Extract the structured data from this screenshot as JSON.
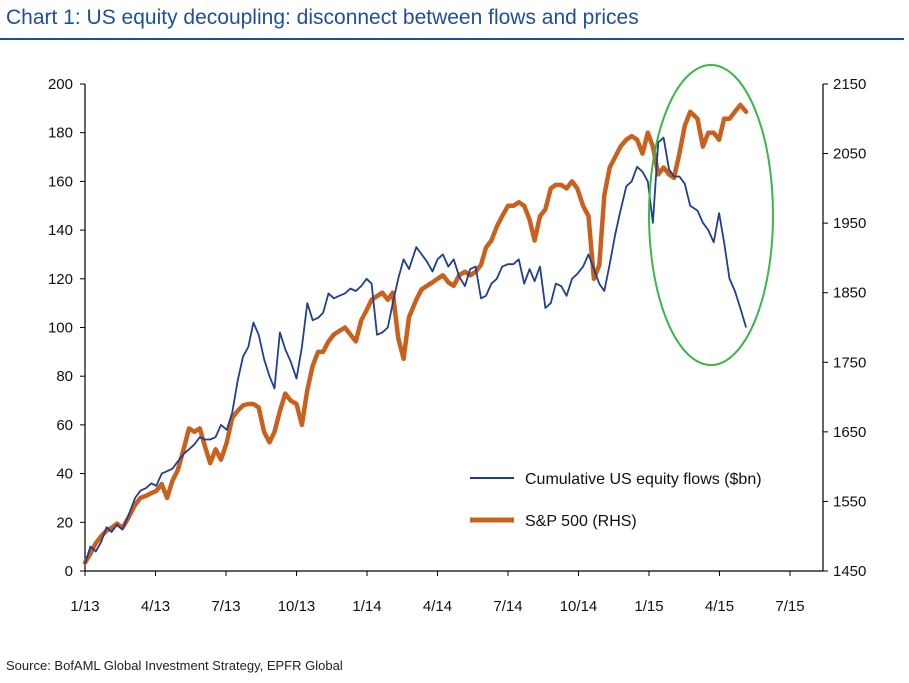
{
  "title": "Chart 1: US equity decoupling: disconnect between flows and prices",
  "source": "Source: BofAML Global Investment Strategy, EPFR Global",
  "colors": {
    "title": "#1f4e9c",
    "flows": "#1f3f8f",
    "sp500": "#c9601e",
    "circle": "#3cb54a"
  },
  "chart_data": {
    "type": "line",
    "title": "Chart 1: US equity decoupling: disconnect between flows and prices",
    "x_ticks": [
      "1/13",
      "4/13",
      "7/13",
      "10/13",
      "1/14",
      "4/14",
      "7/14",
      "10/14",
      "1/15",
      "4/15",
      "7/15"
    ],
    "x_range": [
      "2013-01",
      "2015-08"
    ],
    "y_left": {
      "ticks": [
        "0",
        "20",
        "40",
        "60",
        "80",
        "100",
        "120",
        "140",
        "160",
        "180",
        "200"
      ],
      "range": [
        0,
        200
      ]
    },
    "y_right": {
      "ticks": [
        "1450",
        "1550",
        "1650",
        "1750",
        "1850",
        "1950",
        "2050",
        "2150"
      ],
      "range": [
        1450,
        2150
      ]
    },
    "legend": {
      "placement": "bottom-right",
      "entries": [
        "Cumulative US equity flows ($bn)",
        "S&P 500 (RHS)"
      ]
    },
    "annotation": "green ellipse highlighting early 2015 divergence",
    "grid": false,
    "series": [
      {
        "name": "Cumulative US equity flows ($bn)",
        "axis": "left",
        "x": [
          "2013-01-01",
          "2013-01-08",
          "2013-01-15",
          "2013-01-22",
          "2013-01-29",
          "2013-02-05",
          "2013-02-12",
          "2013-02-19",
          "2013-02-26",
          "2013-03-05",
          "2013-03-12",
          "2013-03-19",
          "2013-03-26",
          "2013-04-02",
          "2013-04-09",
          "2013-04-16",
          "2013-04-23",
          "2013-04-30",
          "2013-05-07",
          "2013-05-14",
          "2013-05-21",
          "2013-05-28",
          "2013-06-04",
          "2013-06-11",
          "2013-06-18",
          "2013-06-25",
          "2013-07-02",
          "2013-07-09",
          "2013-07-16",
          "2013-07-23",
          "2013-07-30",
          "2013-08-06",
          "2013-08-13",
          "2013-08-20",
          "2013-08-27",
          "2013-09-03",
          "2013-09-10",
          "2013-09-17",
          "2013-09-24",
          "2013-10-01",
          "2013-10-08",
          "2013-10-15",
          "2013-10-22",
          "2013-10-29",
          "2013-11-05",
          "2013-11-12",
          "2013-11-19",
          "2013-11-26",
          "2013-12-03",
          "2013-12-10",
          "2013-12-17",
          "2013-12-24",
          "2013-12-31",
          "2014-01-07",
          "2014-01-14",
          "2014-01-21",
          "2014-01-28",
          "2014-02-04",
          "2014-02-11",
          "2014-02-18",
          "2014-02-25",
          "2014-03-04",
          "2014-03-11",
          "2014-03-18",
          "2014-03-25",
          "2014-04-01",
          "2014-04-08",
          "2014-04-15",
          "2014-04-22",
          "2014-04-29",
          "2014-05-06",
          "2014-05-13",
          "2014-05-20",
          "2014-05-27",
          "2014-06-03",
          "2014-06-10",
          "2014-06-17",
          "2014-06-24",
          "2014-07-01",
          "2014-07-08",
          "2014-07-15",
          "2014-07-22",
          "2014-07-29",
          "2014-08-05",
          "2014-08-12",
          "2014-08-19",
          "2014-08-26",
          "2014-09-02",
          "2014-09-09",
          "2014-09-16",
          "2014-09-23",
          "2014-09-30",
          "2014-10-07",
          "2014-10-14",
          "2014-10-21",
          "2014-10-28",
          "2014-11-04",
          "2014-11-11",
          "2014-11-18",
          "2014-11-25",
          "2014-12-02",
          "2014-12-09",
          "2014-12-16",
          "2014-12-23",
          "2014-12-30",
          "2015-01-06",
          "2015-01-13",
          "2015-01-20",
          "2015-01-27",
          "2015-02-03",
          "2015-02-10",
          "2015-02-17",
          "2015-02-24",
          "2015-03-03",
          "2015-03-10",
          "2015-03-17",
          "2015-03-24",
          "2015-03-31",
          "2015-04-07",
          "2015-04-14",
          "2015-04-21",
          "2015-04-28",
          "2015-05-05"
        ],
        "values": [
          3,
          10,
          8,
          12,
          18,
          16,
          19,
          17,
          22,
          30,
          33,
          34,
          36,
          35,
          40,
          41,
          42,
          45,
          48,
          50,
          52,
          55,
          54,
          54,
          55,
          60,
          58,
          65,
          78,
          88,
          92,
          102,
          97,
          87,
          80,
          75,
          98,
          91,
          86,
          79,
          92,
          110,
          103,
          104,
          106,
          114,
          112,
          113,
          114,
          116,
          115,
          117,
          120,
          118,
          97,
          98,
          100,
          110,
          120,
          128,
          124,
          133,
          130,
          127,
          123,
          128,
          130,
          125,
          128,
          121,
          117,
          124,
          125,
          112,
          113,
          118,
          120,
          125,
          126,
          126,
          128,
          118,
          124,
          119,
          125,
          108,
          110,
          118,
          117,
          113,
          120,
          122,
          125,
          130,
          124,
          118,
          115,
          126,
          138,
          148,
          158,
          160,
          166,
          164,
          160,
          143,
          176,
          178,
          165,
          162,
          162,
          159,
          150,
          148,
          143,
          140,
          135,
          147,
          135,
          120,
          115,
          108,
          100
        ]
      },
      {
        "name": "S&P 500 (RHS)",
        "axis": "right",
        "x": [
          "2013-01-01",
          "2013-01-08",
          "2013-01-15",
          "2013-01-22",
          "2013-01-29",
          "2013-02-05",
          "2013-02-12",
          "2013-02-19",
          "2013-02-26",
          "2013-03-05",
          "2013-03-12",
          "2013-03-19",
          "2013-03-26",
          "2013-04-02",
          "2013-04-09",
          "2013-04-16",
          "2013-04-23",
          "2013-04-30",
          "2013-05-07",
          "2013-05-14",
          "2013-05-21",
          "2013-05-28",
          "2013-06-04",
          "2013-06-11",
          "2013-06-18",
          "2013-06-25",
          "2013-07-02",
          "2013-07-09",
          "2013-07-16",
          "2013-07-23",
          "2013-07-30",
          "2013-08-06",
          "2013-08-13",
          "2013-08-20",
          "2013-08-27",
          "2013-09-03",
          "2013-09-10",
          "2013-09-17",
          "2013-09-24",
          "2013-10-01",
          "2013-10-08",
          "2013-10-15",
          "2013-10-22",
          "2013-10-29",
          "2013-11-05",
          "2013-11-12",
          "2013-11-19",
          "2013-11-26",
          "2013-12-03",
          "2013-12-10",
          "2013-12-17",
          "2013-12-24",
          "2013-12-31",
          "2014-01-07",
          "2014-01-14",
          "2014-01-21",
          "2014-01-28",
          "2014-02-04",
          "2014-02-11",
          "2014-02-18",
          "2014-02-25",
          "2014-03-04",
          "2014-03-11",
          "2014-03-18",
          "2014-03-25",
          "2014-04-01",
          "2014-04-08",
          "2014-04-15",
          "2014-04-22",
          "2014-04-29",
          "2014-05-06",
          "2014-05-13",
          "2014-05-20",
          "2014-05-27",
          "2014-06-03",
          "2014-06-10",
          "2014-06-17",
          "2014-06-24",
          "2014-07-01",
          "2014-07-08",
          "2014-07-15",
          "2014-07-22",
          "2014-07-29",
          "2014-08-05",
          "2014-08-12",
          "2014-08-19",
          "2014-08-26",
          "2014-09-02",
          "2014-09-09",
          "2014-09-16",
          "2014-09-23",
          "2014-09-30",
          "2014-10-07",
          "2014-10-14",
          "2014-10-21",
          "2014-10-28",
          "2014-11-04",
          "2014-11-11",
          "2014-11-18",
          "2014-11-25",
          "2014-12-02",
          "2014-12-09",
          "2014-12-16",
          "2014-12-23",
          "2014-12-30",
          "2015-01-06",
          "2015-01-13",
          "2015-01-20",
          "2015-01-27",
          "2015-02-03",
          "2015-02-10",
          "2015-02-17",
          "2015-02-24",
          "2015-03-03",
          "2015-03-10",
          "2015-03-17",
          "2015-03-24",
          "2015-03-31",
          "2015-04-07",
          "2015-04-14",
          "2015-04-21",
          "2015-04-28",
          "2015-05-05"
        ],
        "values": [
          1462,
          1475,
          1490,
          1500,
          1508,
          1512,
          1518,
          1512,
          1525,
          1545,
          1555,
          1558,
          1562,
          1565,
          1575,
          1555,
          1580,
          1595,
          1625,
          1655,
          1650,
          1655,
          1630,
          1605,
          1625,
          1610,
          1635,
          1670,
          1680,
          1688,
          1690,
          1690,
          1685,
          1650,
          1635,
          1650,
          1680,
          1705,
          1695,
          1690,
          1660,
          1710,
          1745,
          1765,
          1765,
          1780,
          1790,
          1795,
          1800,
          1790,
          1780,
          1810,
          1825,
          1840,
          1845,
          1850,
          1840,
          1850,
          1785,
          1755,
          1815,
          1840,
          1855,
          1860,
          1865,
          1870,
          1875,
          1865,
          1860,
          1875,
          1880,
          1875,
          1880,
          1890,
          1915,
          1925,
          1945,
          1960,
          1975,
          1975,
          1980,
          1975,
          1955,
          1925,
          1960,
          1970,
          2000,
          2005,
          2005,
          2000,
          2010,
          2000,
          1975,
          1960,
          1870,
          1890,
          1990,
          2030,
          2045,
          2060,
          2070,
          2075,
          2070,
          2050,
          2080,
          2060,
          2020,
          2030,
          2020,
          2015,
          2050,
          2090,
          2110,
          2100,
          2060,
          2080,
          2080,
          2070,
          2100,
          2100,
          2110,
          2120,
          2110
        ]
      }
    ]
  }
}
